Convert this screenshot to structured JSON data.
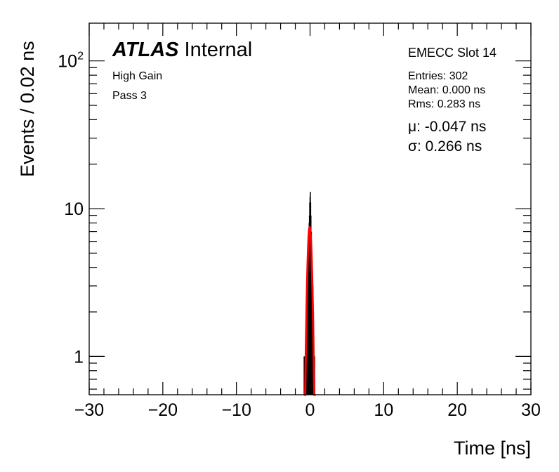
{
  "chart_data": {
    "type": "histogram",
    "title": "",
    "xlabel": "Time [ns]",
    "ylabel": "Events / 0.02 ns",
    "xlim": [
      -30,
      30
    ],
    "ylim": [
      0.55,
      180
    ],
    "yscale": "log",
    "bin_width": 0.02,
    "grid": false,
    "x_ticks": [
      -30,
      -20,
      -10,
      0,
      10,
      20,
      30
    ],
    "x_tick_labels": [
      "−30",
      "−20",
      "−10",
      "0",
      "10",
      "20",
      "30"
    ],
    "y_tick_labels": [
      {
        "value": 1,
        "label": "1"
      },
      {
        "value": 10,
        "label": "10"
      },
      {
        "value": 100,
        "label": "10",
        "sup": "2"
      }
    ],
    "histogram": {
      "name": "data",
      "color": "#000000",
      "bins": [
        {
          "x": -0.8,
          "y": 1
        },
        {
          "x": -0.7,
          "y": 1
        },
        {
          "x": -0.6,
          "y": 1
        },
        {
          "x": -0.5,
          "y": 1
        },
        {
          "x": -0.44,
          "y": 2
        },
        {
          "x": -0.36,
          "y": 3
        },
        {
          "x": -0.3,
          "y": 4
        },
        {
          "x": -0.24,
          "y": 5
        },
        {
          "x": -0.18,
          "y": 6
        },
        {
          "x": -0.12,
          "y": 8
        },
        {
          "x": -0.08,
          "y": 9
        },
        {
          "x": -0.04,
          "y": 11
        },
        {
          "x": 0.0,
          "y": 12
        },
        {
          "x": 0.04,
          "y": 13
        },
        {
          "x": 0.08,
          "y": 11
        },
        {
          "x": 0.12,
          "y": 9
        },
        {
          "x": 0.18,
          "y": 7
        },
        {
          "x": 0.24,
          "y": 5
        },
        {
          "x": 0.3,
          "y": 4
        },
        {
          "x": 0.38,
          "y": 3
        },
        {
          "x": 0.46,
          "y": 2
        },
        {
          "x": 0.54,
          "y": 1
        },
        {
          "x": 0.62,
          "y": 1
        }
      ]
    },
    "fit": {
      "name": "gaussian-fit",
      "color": "#ff0000",
      "function": "gaussian",
      "mu": -0.047,
      "sigma": 0.266,
      "amplitude": 7.5
    }
  },
  "labels": {
    "atlas": "ATLAS",
    "internal": "Internal",
    "gain": "High Gain",
    "pass": "Pass 3",
    "slot": "EMECC Slot 14",
    "entries": "Entries: 302",
    "mean": "Mean: 0.000 ns",
    "rms": "Rms: 0.283 ns",
    "mu": "μ: -0.047 ns",
    "sigma": "σ: 0.266 ns"
  }
}
